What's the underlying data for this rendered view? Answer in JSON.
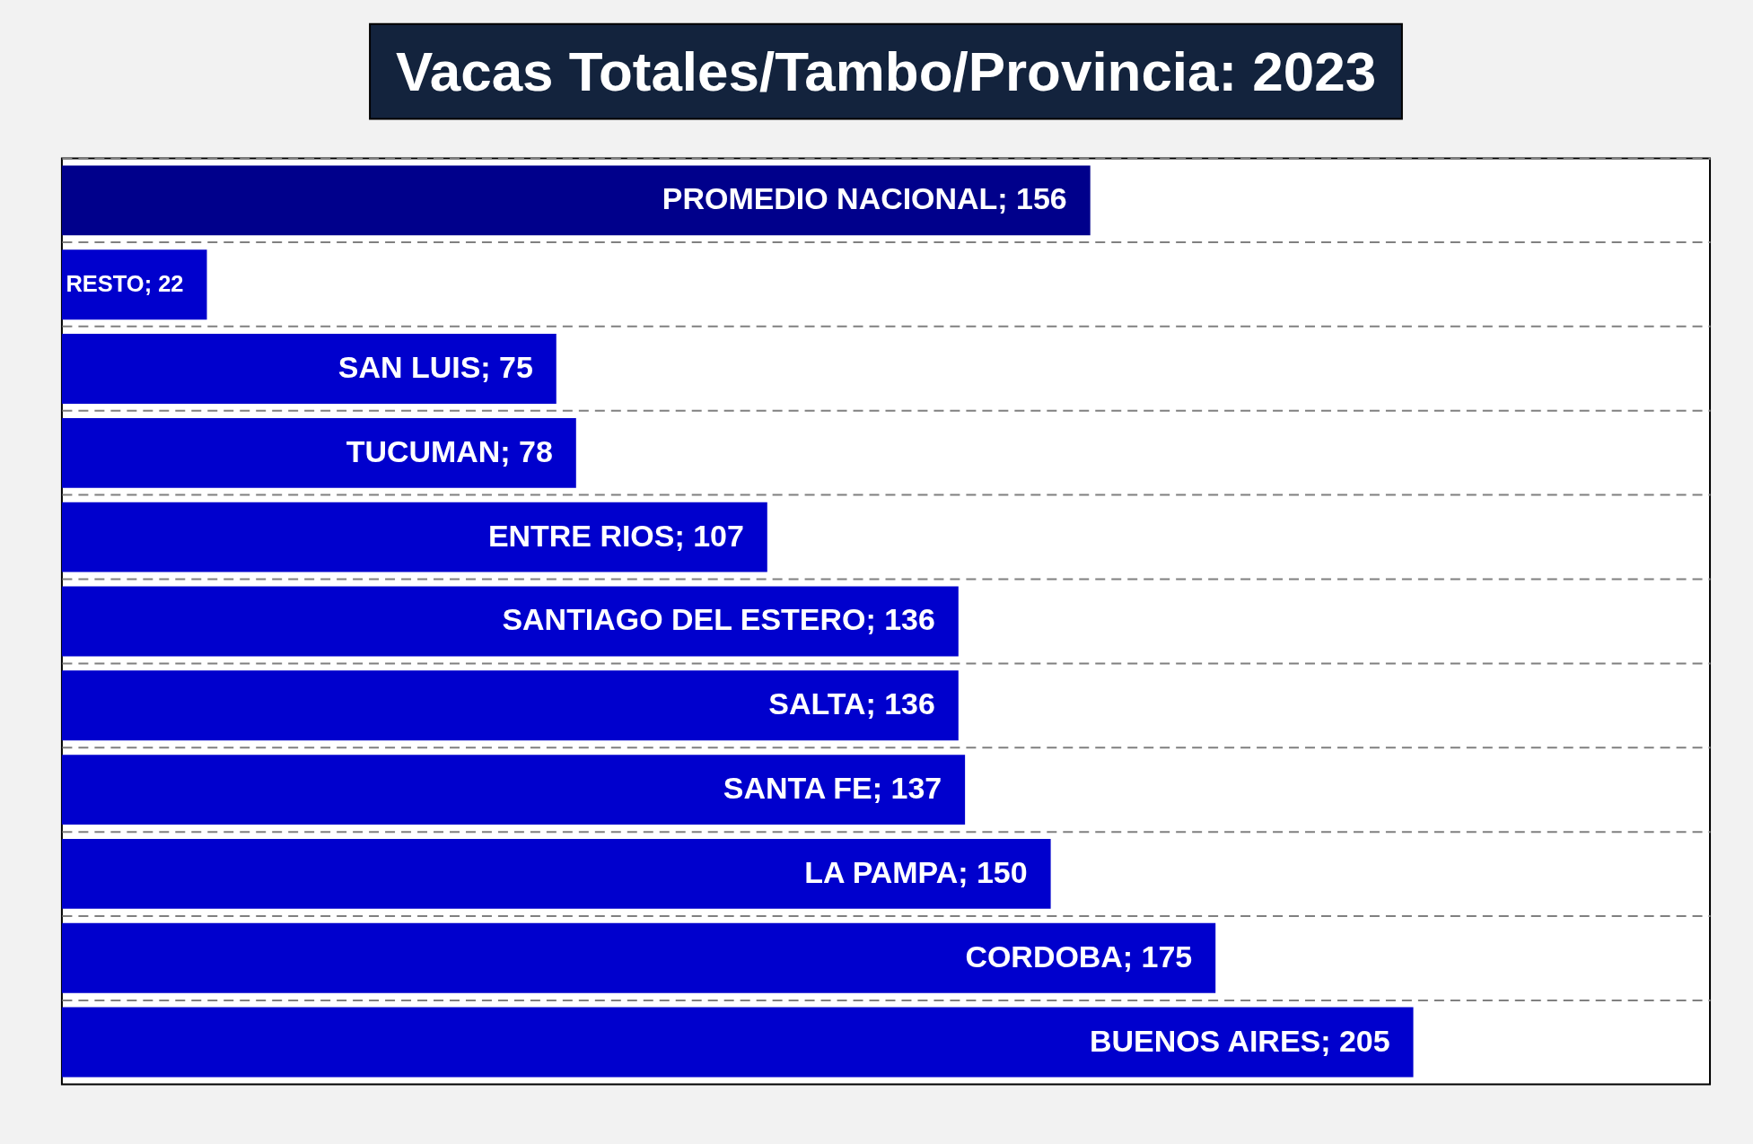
{
  "chart_data": {
    "type": "bar",
    "orientation": "horizontal",
    "title": "Vacas Totales/Tambo/Provincia: 2023",
    "categories": [
      null,
      null,
      null,
      null,
      null,
      null,
      null,
      null,
      null,
      null,
      null
    ],
    "values": [
      156,
      22,
      75,
      78,
      107,
      136,
      136,
      137,
      150,
      175,
      205
    ],
    "colors": [
      "#00008b",
      "#0000cd",
      "#0000cd",
      "#0000cd",
      "#0000cd",
      "#0000cd",
      "#0000cd",
      "#0000cd",
      "#0000cd",
      "#0000cd",
      "#0000cd"
    ],
    "value_labels": [
      "PROMEDIO NACIONAL; 156",
      "RESTO; 22",
      "SAN LUIS; 75",
      "TUCUMAN; 78",
      "ENTRE RIOS; 107",
      "SANTIAGO DEL ESTERO; 136",
      "SALTA; 136",
      "SANTA FE; 137",
      "LA PAMPA; 150",
      "CORDOBA; 175",
      "BUENOS AIRES; 205"
    ],
    "xlim": [
      0,
      250
    ],
    "grid": "y",
    "tick_labels": false
  }
}
